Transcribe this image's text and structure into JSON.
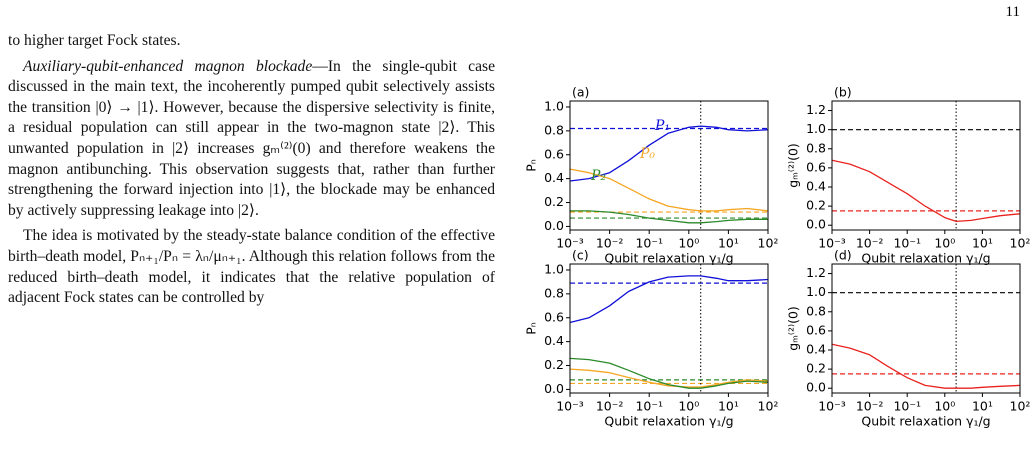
{
  "page_number": "11",
  "paragraphs": [
    {
      "text": "to higher target Fock states."
    },
    {
      "heading": "Auxiliary-qubit-enhanced magnon blockade",
      "text": "—In the single-qubit case discussed in the main text, the incoherently pumped qubit selectively assists the transition |0⟩ → |1⟩. However, because the dispersive selectivity is finite, a residual population can still appear in the two-magnon state |2⟩. This unwanted population in |2⟩ increases gₘ⁽²⁾(0) and therefore weakens the magnon antibunching. This observation suggests that, rather than further strengthening the forward injection into |1⟩, the blockade may be enhanced by actively suppressing leakage into |2⟩."
    },
    {
      "text": "The idea is motivated by the steady-state balance condition of the effective birth–death model, Pₙ₊₁/Pₙ = λₙ/μₙ₊₁. Although this relation follows from the reduced birth–death model, it indicates that the relative population of adjacent Fock states can be controlled by"
    }
  ],
  "figure": {
    "panels": [
      {
        "label": "(a)",
        "ylabel": "Pₙ",
        "xlabel": "Qubit relaxation γ₁/g",
        "xscale": "log",
        "x": [
          0.001,
          0.003,
          0.01,
          0.03,
          0.1,
          0.3,
          1,
          2,
          5,
          10,
          30,
          100
        ],
        "xlim": [
          0.001,
          100
        ],
        "xticks": [
          {
            "value": 0.001,
            "label": "10⁻³"
          },
          {
            "value": 0.01,
            "label": "10⁻²"
          },
          {
            "value": 0.1,
            "label": "10⁻¹"
          },
          {
            "value": 1,
            "label": "10⁰"
          },
          {
            "value": 10,
            "label": "10¹"
          },
          {
            "value": 100,
            "label": "10²"
          }
        ],
        "ylim": [
          -0.03,
          1.05
        ],
        "yticks": [
          {
            "value": 0,
            "label": "0.0"
          },
          {
            "value": 0.2,
            "label": "0.2"
          },
          {
            "value": 0.4,
            "label": "0.4"
          },
          {
            "value": 0.6,
            "label": "0.6"
          },
          {
            "value": 0.8,
            "label": "0.8"
          },
          {
            "value": 1,
            "label": "1.0"
          }
        ],
        "series": [
          {
            "name": "P₁",
            "color": "#1010d8",
            "values": [
              0.38,
              0.4,
              0.45,
              0.55,
              0.68,
              0.78,
              0.83,
              0.84,
              0.83,
              0.81,
              0.8,
              0.81
            ]
          },
          {
            "name": "P₀",
            "color": "#f5a623",
            "values": [
              0.48,
              0.45,
              0.4,
              0.32,
              0.23,
              0.17,
              0.14,
              0.13,
              0.13,
              0.14,
              0.15,
              0.13
            ]
          },
          {
            "name": "P₂",
            "color": "#2a8a2a",
            "values": [
              0.13,
              0.13,
              0.12,
              0.1,
              0.07,
              0.05,
              0.03,
              0.03,
              0.04,
              0.05,
              0.06,
              0.06
            ]
          }
        ],
        "hlines": [
          {
            "value": 0.82,
            "color": "#1010d8"
          },
          {
            "value": 0.12,
            "color": "#f5a623"
          },
          {
            "value": 0.07,
            "color": "#2a8a2a"
          }
        ],
        "vline": 2
      },
      {
        "label": "(b)",
        "ylabel": "gₘ⁽²⁾(0)",
        "xlabel": "Qubit relaxation γ₁/g",
        "xscale": "log",
        "x": [
          0.001,
          0.003,
          0.01,
          0.03,
          0.1,
          0.3,
          1,
          2,
          5,
          10,
          30,
          100
        ],
        "xlim": [
          0.001,
          100
        ],
        "xticks": [
          {
            "value": 0.001,
            "label": "10⁻³"
          },
          {
            "value": 0.01,
            "label": "10⁻²"
          },
          {
            "value": 0.1,
            "label": "10⁻¹"
          },
          {
            "value": 1,
            "label": "10⁰"
          },
          {
            "value": 10,
            "label": "10¹"
          },
          {
            "value": 100,
            "label": "10²"
          }
        ],
        "ylim": [
          -0.05,
          1.3
        ],
        "yticks": [
          {
            "value": 0,
            "label": "0.0"
          },
          {
            "value": 0.2,
            "label": "0.2"
          },
          {
            "value": 0.4,
            "label": "0.4"
          },
          {
            "value": 0.6,
            "label": "0.6"
          },
          {
            "value": 0.8,
            "label": "0.8"
          },
          {
            "value": 1,
            "label": "1.0"
          },
          {
            "value": 1.2,
            "label": "1.2"
          }
        ],
        "series": [
          {
            "color": "#e8231e",
            "values": [
              0.68,
              0.64,
              0.56,
              0.45,
              0.33,
              0.2,
              0.08,
              0.04,
              0.05,
              0.07,
              0.1,
              0.12
            ]
          }
        ],
        "hlines": [
          {
            "value": 1,
            "color": "#000000"
          },
          {
            "value": 0.15,
            "color": "#e8231e"
          }
        ],
        "vline": 2
      },
      {
        "label": "(c)",
        "ylabel": "Pₙ",
        "xlabel": "Qubit relaxation γ₁/g",
        "xscale": "log",
        "x": [
          0.001,
          0.003,
          0.01,
          0.03,
          0.1,
          0.3,
          1,
          2,
          5,
          10,
          30,
          100
        ],
        "xlim": [
          0.001,
          100
        ],
        "xticks": [
          {
            "value": 0.001,
            "label": "10⁻³"
          },
          {
            "value": 0.01,
            "label": "10⁻²"
          },
          {
            "value": 0.1,
            "label": "10⁻¹"
          },
          {
            "value": 1,
            "label": "10⁰"
          },
          {
            "value": 10,
            "label": "10¹"
          },
          {
            "value": 100,
            "label": "10²"
          }
        ],
        "ylim": [
          -0.03,
          1.05
        ],
        "yticks": [
          {
            "value": 0,
            "label": "0.0"
          },
          {
            "value": 0.2,
            "label": "0.2"
          },
          {
            "value": 0.4,
            "label": "0.4"
          },
          {
            "value": 0.6,
            "label": "0.6"
          },
          {
            "value": 0.8,
            "label": "0.8"
          },
          {
            "value": 1,
            "label": "1.0"
          }
        ],
        "series": [
          {
            "color": "#1010d8",
            "values": [
              0.56,
              0.6,
              0.7,
              0.82,
              0.9,
              0.94,
              0.95,
              0.95,
              0.93,
              0.91,
              0.91,
              0.92
            ]
          },
          {
            "color": "#f5a623",
            "values": [
              0.17,
              0.16,
              0.14,
              0.1,
              0.06,
              0.03,
              0.02,
              0.02,
              0.04,
              0.06,
              0.08,
              0.07
            ]
          },
          {
            "color": "#2a8a2a",
            "values": [
              0.26,
              0.25,
              0.22,
              0.16,
              0.09,
              0.04,
              0.01,
              0.01,
              0.03,
              0.05,
              0.07,
              0.06
            ]
          }
        ],
        "hlines": [
          {
            "value": 0.89,
            "color": "#1010d8"
          },
          {
            "value": 0.05,
            "color": "#f5a623"
          },
          {
            "value": 0.08,
            "color": "#2a8a2a"
          }
        ],
        "vline": 2
      },
      {
        "label": "(d)",
        "ylabel": "gₘ⁽²⁾(0)",
        "xlabel": "Qubit relaxation γ₁/g",
        "xscale": "log",
        "x": [
          0.001,
          0.003,
          0.01,
          0.03,
          0.1,
          0.3,
          1,
          2,
          5,
          10,
          30,
          100
        ],
        "xlim": [
          0.001,
          100
        ],
        "xticks": [
          {
            "value": 0.001,
            "label": "10⁻³"
          },
          {
            "value": 0.01,
            "label": "10⁻²"
          },
          {
            "value": 0.1,
            "label": "10⁻¹"
          },
          {
            "value": 1,
            "label": "10⁰"
          },
          {
            "value": 10,
            "label": "10¹"
          },
          {
            "value": 100,
            "label": "10²"
          }
        ],
        "ylim": [
          -0.05,
          1.3
        ],
        "yticks": [
          {
            "value": 0,
            "label": "0.0"
          },
          {
            "value": 0.2,
            "label": "0.2"
          },
          {
            "value": 0.4,
            "label": "0.4"
          },
          {
            "value": 0.6,
            "label": "0.6"
          },
          {
            "value": 0.8,
            "label": "0.8"
          },
          {
            "value": 1,
            "label": "1.0"
          },
          {
            "value": 1.2,
            "label": "1.2"
          }
        ],
        "series": [
          {
            "color": "#e8231e",
            "values": [
              0.46,
              0.42,
              0.35,
              0.23,
              0.11,
              0.03,
              0.0,
              0.0,
              0.0,
              0.01,
              0.02,
              0.03
            ]
          }
        ],
        "hlines": [
          {
            "value": 1,
            "color": "#000000"
          },
          {
            "value": 0.15,
            "color": "#e8231e"
          }
        ],
        "vline": 2
      }
    ]
  }
}
